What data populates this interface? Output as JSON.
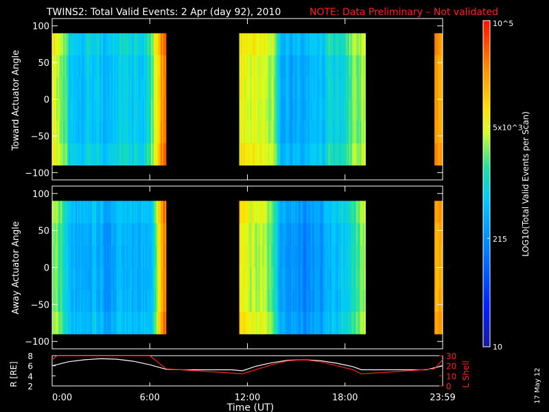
{
  "header": {
    "title": "TWINS2: Total Valid Events:  2 Apr (day  92), 2010",
    "note": "NOTE: Data Preliminary – Not validated",
    "note_color": "#ff2020"
  },
  "footer": {
    "date_stamp": "17 May 12"
  },
  "chart_data": [
    {
      "type": "heatmap",
      "ylabel": "Toward Actuator Angle",
      "ylim": [
        -110,
        110
      ],
      "yticks": [
        "100",
        "50",
        "0",
        "−50",
        "−100"
      ],
      "ytick_values": [
        100,
        50,
        0,
        -50,
        -100
      ],
      "angle_range": [
        -90,
        90
      ],
      "time_range_hours": [
        0,
        24
      ],
      "coverage_hours": [
        [
          0.0,
          7.0
        ],
        [
          11.5,
          19.2
        ],
        [
          23.5,
          24.0
        ]
      ],
      "mean_log10_profile": {
        "hours": [
          0.0,
          0.4,
          0.8,
          1.0,
          1.4,
          1.8,
          2.3,
          2.7,
          3.2,
          3.6,
          4.0,
          4.5,
          5.0,
          5.5,
          6.0,
          6.3,
          6.6,
          6.8,
          7.0,
          11.5,
          11.8,
          12.2,
          12.6,
          13.0,
          13.5,
          14.0,
          14.6,
          15.0,
          15.5,
          16.0,
          16.6,
          17.0,
          17.5,
          18.0,
          18.3,
          18.7,
          19.0,
          19.2,
          23.5,
          24.0
        ],
        "log10": [
          3.7,
          3.6,
          3.3,
          2.8,
          2.9,
          2.7,
          2.8,
          2.9,
          2.6,
          2.7,
          2.9,
          3.0,
          2.8,
          2.9,
          3.1,
          3.6,
          4.2,
          4.4,
          4.3,
          3.8,
          3.8,
          3.7,
          3.7,
          3.6,
          3.5,
          2.6,
          2.5,
          2.6,
          2.4,
          2.8,
          2.7,
          3.0,
          2.9,
          3.0,
          3.3,
          3.4,
          3.5,
          3.6,
          4.3,
          4.3
        ]
      }
    },
    {
      "type": "heatmap",
      "ylabel": "Away Actuator Angle",
      "ylim": [
        -110,
        110
      ],
      "yticks": [
        "100",
        "50",
        "0",
        "−50",
        "−100"
      ],
      "ytick_values": [
        100,
        50,
        0,
        -50,
        -100
      ],
      "angle_range": [
        -90,
        90
      ],
      "time_range_hours": [
        0,
        24
      ],
      "coverage_hours": [
        [
          0.0,
          7.0
        ],
        [
          11.5,
          19.2
        ],
        [
          23.5,
          24.0
        ]
      ],
      "mean_log10_profile": {
        "hours": [
          0.0,
          0.4,
          0.8,
          1.0,
          1.4,
          1.8,
          2.3,
          2.7,
          3.2,
          3.6,
          4.0,
          4.5,
          5.0,
          5.5,
          6.0,
          6.3,
          6.6,
          6.8,
          7.0,
          11.5,
          11.8,
          12.2,
          12.6,
          13.0,
          13.5,
          14.0,
          14.6,
          15.0,
          15.5,
          16.0,
          16.6,
          17.0,
          17.5,
          18.0,
          18.3,
          18.7,
          19.0,
          19.2,
          23.5,
          24.0
        ],
        "log10": [
          3.5,
          3.3,
          3.0,
          2.6,
          2.6,
          2.5,
          2.6,
          2.7,
          2.4,
          2.5,
          2.6,
          2.7,
          2.6,
          2.6,
          2.7,
          3.2,
          4.1,
          4.4,
          4.3,
          3.8,
          3.7,
          3.6,
          3.6,
          3.5,
          3.3,
          2.5,
          2.3,
          2.4,
          2.2,
          2.4,
          2.4,
          2.6,
          2.7,
          2.8,
          3.0,
          3.2,
          3.4,
          3.5,
          4.3,
          4.3
        ]
      }
    },
    {
      "type": "line",
      "ylabel_left": "R [RE]",
      "ylabel_right": "L Shell",
      "ylim_left": [
        2,
        8
      ],
      "ylim_right": [
        0,
        30
      ],
      "yticks_left": [
        "8",
        "6",
        "4",
        "2"
      ],
      "ytick_values_left": [
        8,
        6,
        4,
        2
      ],
      "yticks_right": [
        "30",
        "20",
        "10",
        "0"
      ],
      "ytick_values_right": [
        30,
        20,
        10,
        0
      ],
      "xlabel": "Time (UT)",
      "xticks": [
        "0:00",
        "6:00",
        "12:00",
        "18:00",
        "23:59"
      ],
      "xtick_hours": [
        0,
        6,
        12,
        18,
        24
      ],
      "series": [
        {
          "name": "R [RE]",
          "color": "#ffffff",
          "axis": "left",
          "x": [
            0,
            1,
            2,
            3,
            4,
            5,
            6,
            7,
            8,
            9,
            10,
            11,
            11.7,
            12.5,
            13.5,
            14.5,
            15.5,
            16.5,
            17.5,
            18.5,
            19,
            20,
            21,
            22,
            23,
            24
          ],
          "y": [
            6.0,
            6.8,
            7.2,
            7.4,
            7.3,
            6.9,
            6.2,
            5.3,
            5.2,
            5.2,
            5.2,
            5.2,
            5.0,
            5.9,
            6.6,
            7.1,
            7.2,
            7.0,
            6.5,
            5.8,
            5.2,
            5.2,
            5.2,
            5.2,
            5.2,
            6.0
          ]
        },
        {
          "name": "L Shell",
          "color": "#ff2020",
          "axis": "right",
          "x": [
            0,
            0.3,
            6.0,
            7.0,
            11.7,
            12.5,
            13.5,
            14.5,
            15.5,
            16.5,
            17.5,
            18.5,
            19.0,
            21,
            23.5,
            24
          ],
          "y": [
            26,
            31,
            31,
            17,
            12,
            16,
            21,
            25,
            26,
            24,
            20,
            16,
            12,
            14,
            17,
            26
          ]
        }
      ]
    }
  ],
  "colorbar": {
    "label": "LOG10(Total Valid Events per Scan)",
    "ticks": [
      {
        "text": "10^5",
        "log10": 5.0
      },
      {
        "text": "5x10^3",
        "log10": 3.7
      },
      {
        "text": "215",
        "log10": 2.33
      },
      {
        "text": "10",
        "log10": 1.0
      }
    ],
    "log10_range": [
      1,
      5
    ]
  }
}
